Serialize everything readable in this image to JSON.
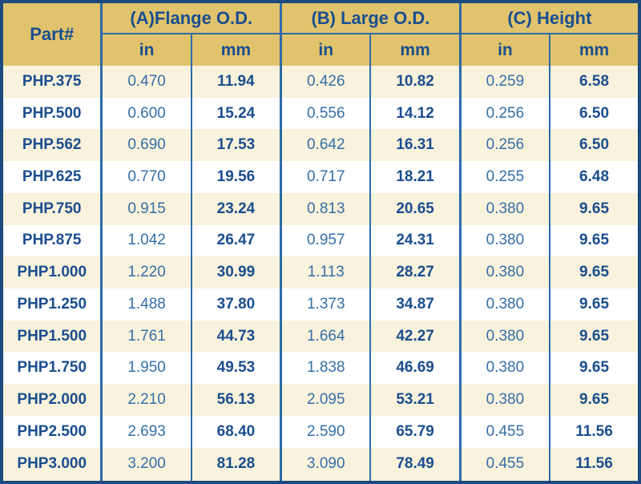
{
  "chart_data": {
    "type": "table",
    "headers": {
      "part": "Part#",
      "groups": [
        "(A)Flange O.D.",
        "(B) Large O.D.",
        "(C) Height"
      ],
      "units": [
        "in",
        "mm",
        "in",
        "mm",
        "in",
        "mm"
      ]
    },
    "rows": [
      [
        "PHP.375",
        "0.470",
        "11.94",
        "0.426",
        "10.82",
        "0.259",
        "6.58"
      ],
      [
        "PHP.500",
        "0.600",
        "15.24",
        "0.556",
        "14.12",
        "0.256",
        "6.50"
      ],
      [
        "PHP.562",
        "0.690",
        "17.53",
        "0.642",
        "16.31",
        "0.256",
        "6.50"
      ],
      [
        "PHP.625",
        "0.770",
        "19.56",
        "0.717",
        "18.21",
        "0.255",
        "6.48"
      ],
      [
        "PHP.750",
        "0.915",
        "23.24",
        "0.813",
        "20.65",
        "0.380",
        "9.65"
      ],
      [
        "PHP.875",
        "1.042",
        "26.47",
        "0.957",
        "24.31",
        "0.380",
        "9.65"
      ],
      [
        "PHP1.000",
        "1.220",
        "30.99",
        "1.113",
        "28.27",
        "0.380",
        "9.65"
      ],
      [
        "PHP1.250",
        "1.488",
        "37.80",
        "1.373",
        "34.87",
        "0.380",
        "9.65"
      ],
      [
        "PHP1.500",
        "1.761",
        "44.73",
        "1.664",
        "42.27",
        "0.380",
        "9.65"
      ],
      [
        "PHP1.750",
        "1.950",
        "49.53",
        "1.838",
        "46.69",
        "0.380",
        "9.65"
      ],
      [
        "PHP2.000",
        "2.210",
        "56.13",
        "2.095",
        "53.21",
        "0.380",
        "9.65"
      ],
      [
        "PHP2.500",
        "2.693",
        "68.40",
        "2.590",
        "65.79",
        "0.455",
        "11.56"
      ],
      [
        "PHP3.000",
        "3.200",
        "81.28",
        "3.090",
        "78.49",
        "0.455",
        "11.56"
      ]
    ],
    "layout_hints": {
      "row_striping": "odd rows cream, even rows white",
      "unit_in_style": "regular weight",
      "unit_mm_style": "bold"
    }
  },
  "colors": {
    "header_gold": "#e0c36c",
    "stripe_cream": "#f9f2dc",
    "stripe_white": "#ffffff",
    "outer_border_navy": "#1c4a7e",
    "inner_border_blue": "#2d6aa8",
    "text_navy": "#1a4e8f",
    "text_mid_blue": "#346fa9"
  }
}
